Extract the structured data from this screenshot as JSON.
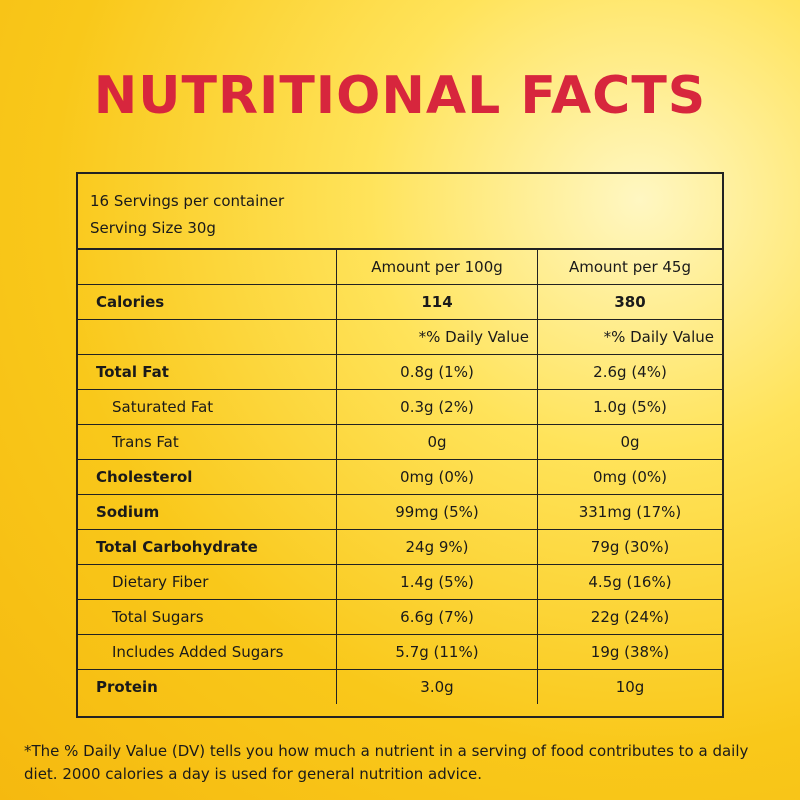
{
  "title": "NUTRITIONAL FACTS",
  "servings": "16 Servings per container",
  "serving_size": "Serving Size 30g",
  "columns": {
    "col1": "Amount per 100g",
    "col2": "Amount per 45g"
  },
  "calories": {
    "label": "Calories",
    "col1": "114",
    "col2": "380"
  },
  "daily_value_label": {
    "col1": "*% Daily Value",
    "col2": "*% Daily Value"
  },
  "nutrients": [
    {
      "label": "Total Fat",
      "col1": "0.8g (1%)",
      "col2": "2.6g (4%)"
    },
    {
      "label": "Saturated Fat",
      "col1": "0.3g (2%)",
      "col2": "1.0g (5%)"
    },
    {
      "label": "Trans Fat",
      "col1": "0g",
      "col2": "0g"
    },
    {
      "label": "Cholesterol",
      "col1": "0mg (0%)",
      "col2": "0mg (0%)"
    },
    {
      "label": "Sodium",
      "col1": "99mg (5%)",
      "col2": "331mg (17%)"
    },
    {
      "label": "Total Carbohydrate",
      "col1": "24g 9%)",
      "col2": "79g (30%)"
    },
    {
      "label": "Dietary Fiber",
      "col1": "1.4g (5%)",
      "col2": "4.5g (16%)"
    },
    {
      "label": "Total Sugars",
      "col1": "6.6g (7%)",
      "col2": "22g (24%)"
    },
    {
      "label": "Includes Added Sugars",
      "col1": "5.7g (11%)",
      "col2": "19g (38%)"
    },
    {
      "label": "Protein",
      "col1": "3.0g",
      "col2": "10g"
    }
  ],
  "footnote": "*The % Daily Value (DV) tells you how much a nutrient in a serving of food contributes to a daily diet. 2000 calories a day is used for general nutrition advice."
}
